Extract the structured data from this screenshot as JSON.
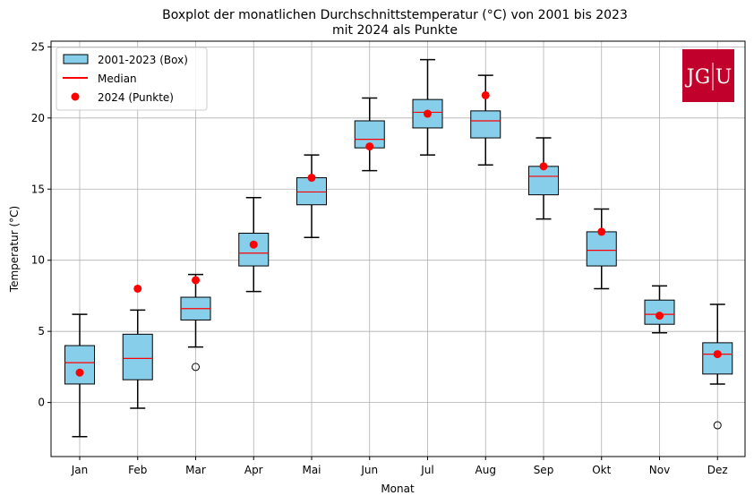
{
  "chart_data": {
    "type": "boxplot",
    "title_line1": "Boxplot der monatlichen Durchschnittstemperatur (°C) von 2001 bis 2023",
    "title_line2": "mit 2024 als Punkte",
    "xlabel": "Monat",
    "ylabel": "Temperatur (°C)",
    "ylim": [
      -3.8,
      25.4
    ],
    "yticks": [
      0,
      5,
      10,
      15,
      20,
      25
    ],
    "grid": true,
    "legend_position": "top-left",
    "legend": {
      "box": "2001-2023 (Box)",
      "median": "Median",
      "points": "2024 (Punkte)"
    },
    "colors": {
      "box_fill": "#87ceeb",
      "median": "#ff0000",
      "points": "#ff0000",
      "grid": "#b0b0b0",
      "logo": "#c1002b"
    },
    "logo_left": "JG",
    "logo_right": "U",
    "categories": [
      "Jan",
      "Feb",
      "Mar",
      "Apr",
      "Mai",
      "Jun",
      "Jul",
      "Aug",
      "Sep",
      "Okt",
      "Nov",
      "Dez"
    ],
    "boxes": [
      {
        "whisker_low": -2.4,
        "q1": 1.3,
        "median": 2.8,
        "q3": 4.0,
        "whisker_high": 6.2,
        "outliers": []
      },
      {
        "whisker_low": -0.4,
        "q1": 1.6,
        "median": 3.1,
        "q3": 4.8,
        "whisker_high": 6.5,
        "outliers": []
      },
      {
        "whisker_low": 3.9,
        "q1": 5.8,
        "median": 6.6,
        "q3": 7.4,
        "whisker_high": 9.0,
        "outliers": [
          2.5
        ]
      },
      {
        "whisker_low": 7.8,
        "q1": 9.6,
        "median": 10.5,
        "q3": 11.9,
        "whisker_high": 14.4,
        "outliers": []
      },
      {
        "whisker_low": 11.6,
        "q1": 13.9,
        "median": 14.8,
        "q3": 15.8,
        "whisker_high": 17.4,
        "outliers": []
      },
      {
        "whisker_low": 16.3,
        "q1": 17.9,
        "median": 18.5,
        "q3": 19.8,
        "whisker_high": 21.4,
        "outliers": []
      },
      {
        "whisker_low": 17.4,
        "q1": 19.3,
        "median": 20.4,
        "q3": 21.3,
        "whisker_high": 24.1,
        "outliers": []
      },
      {
        "whisker_low": 16.7,
        "q1": 18.6,
        "median": 19.8,
        "q3": 20.5,
        "whisker_high": 23.0,
        "outliers": []
      },
      {
        "whisker_low": 12.9,
        "q1": 14.6,
        "median": 15.9,
        "q3": 16.6,
        "whisker_high": 18.6,
        "outliers": []
      },
      {
        "whisker_low": 8.0,
        "q1": 9.6,
        "median": 10.7,
        "q3": 12.0,
        "whisker_high": 13.6,
        "outliers": []
      },
      {
        "whisker_low": 4.9,
        "q1": 5.5,
        "median": 6.2,
        "q3": 7.2,
        "whisker_high": 8.2,
        "outliers": []
      },
      {
        "whisker_low": 1.3,
        "q1": 2.0,
        "median": 3.4,
        "q3": 4.2,
        "whisker_high": 6.9,
        "outliers": [
          -1.6
        ]
      }
    ],
    "points_2024": [
      2.1,
      8.0,
      8.6,
      11.1,
      15.8,
      18.0,
      20.3,
      21.6,
      16.6,
      12.0,
      6.1,
      3.4
    ]
  }
}
